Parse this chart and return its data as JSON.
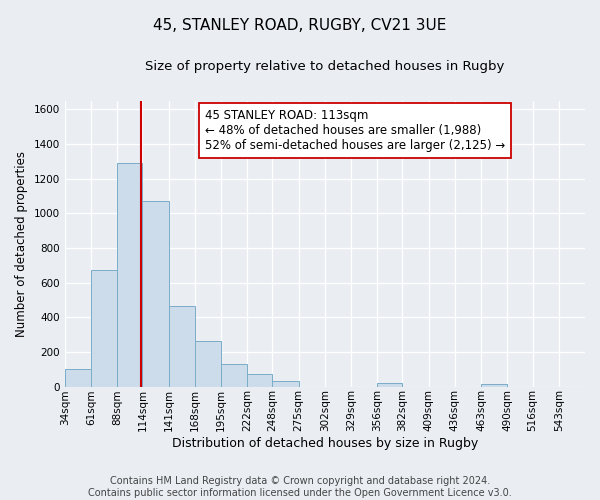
{
  "title": "45, STANLEY ROAD, RUGBY, CV21 3UE",
  "subtitle": "Size of property relative to detached houses in Rugby",
  "xlabel": "Distribution of detached houses by size in Rugby",
  "ylabel": "Number of detached properties",
  "bar_edges": [
    34,
    61,
    88,
    114,
    141,
    168,
    195,
    222,
    248,
    275,
    302,
    329,
    356,
    382,
    409,
    436,
    463,
    490,
    516,
    543,
    570
  ],
  "bar_heights": [
    100,
    670,
    1290,
    1070,
    465,
    265,
    130,
    75,
    30,
    0,
    0,
    0,
    20,
    0,
    0,
    0,
    15,
    0,
    0,
    0
  ],
  "bar_color": "#cddceb",
  "bar_edge_color": "#7aacc8",
  "vline_x": 113,
  "vline_color": "#cc0000",
  "annotation_line1": "45 STANLEY ROAD: 113sqm",
  "annotation_line2": "← 48% of detached houses are smaller (1,988)",
  "annotation_line3": "52% of semi-detached houses are larger (2,125) →",
  "annotation_box_color": "#ffffff",
  "annotation_box_edge_color": "#cc0000",
  "ylim": [
    0,
    1650
  ],
  "yticks": [
    0,
    200,
    400,
    600,
    800,
    1000,
    1200,
    1400,
    1600
  ],
  "bg_color": "#eaeef3",
  "plot_bg_color": "#eaeef3",
  "footer_text": "Contains HM Land Registry data © Crown copyright and database right 2024.\nContains public sector information licensed under the Open Government Licence v3.0.",
  "title_fontsize": 11,
  "subtitle_fontsize": 9.5,
  "xlabel_fontsize": 9,
  "ylabel_fontsize": 8.5,
  "tick_fontsize": 7.5,
  "annotation_fontsize": 8.5,
  "footer_fontsize": 7
}
